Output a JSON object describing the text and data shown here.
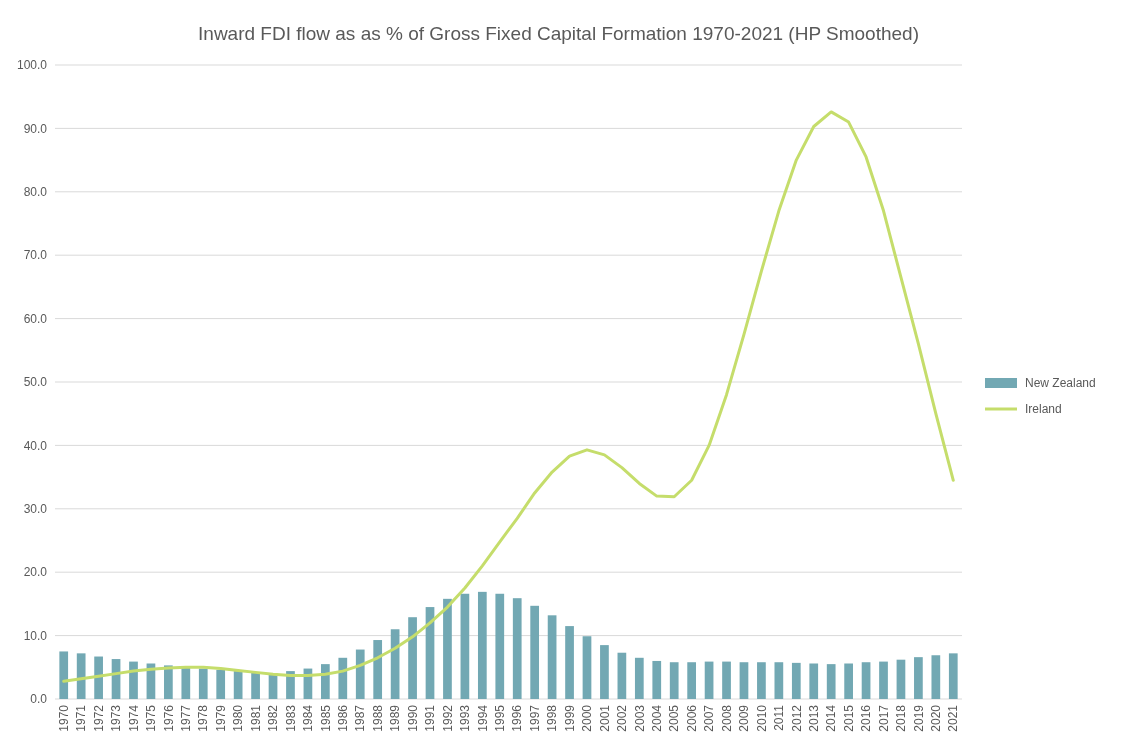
{
  "chart_data": {
    "type": "bar",
    "title": "Inward FDI flow as as % of Gross Fixed Capital Formation 1970-2021 (HP Smoothed)",
    "categories": [
      "1970",
      "1971",
      "1972",
      "1973",
      "1974",
      "1975",
      "1976",
      "1977",
      "1978",
      "1979",
      "1980",
      "1981",
      "1982",
      "1983",
      "1984",
      "1985",
      "1986",
      "1987",
      "1988",
      "1989",
      "1990",
      "1991",
      "1992",
      "1993",
      "1994",
      "1995",
      "1996",
      "1997",
      "1998",
      "1999",
      "2000",
      "2001",
      "2002",
      "2003",
      "2004",
      "2005",
      "2006",
      "2007",
      "2008",
      "2009",
      "2010",
      "2011",
      "2012",
      "2013",
      "2014",
      "2015",
      "2016",
      "2017",
      "2018",
      "2019",
      "2020",
      "2021"
    ],
    "series": [
      {
        "name": "New Zealand",
        "type": "bar",
        "color": "#72a8b3",
        "values": [
          7.5,
          7.2,
          6.7,
          6.3,
          5.9,
          5.6,
          5.3,
          5.0,
          4.8,
          4.6,
          4.4,
          4.2,
          4.1,
          4.4,
          4.8,
          5.5,
          6.5,
          7.8,
          9.3,
          11.0,
          12.9,
          14.5,
          15.8,
          16.6,
          16.9,
          16.6,
          15.9,
          14.7,
          13.2,
          11.5,
          9.9,
          8.5,
          7.3,
          6.5,
          6.0,
          5.8,
          5.8,
          5.9,
          5.9,
          5.8,
          5.8,
          5.8,
          5.7,
          5.6,
          5.5,
          5.6,
          5.8,
          5.9,
          6.2,
          6.6,
          6.9,
          7.2
        ]
      },
      {
        "name": "Ireland",
        "type": "line",
        "color": "#c5dd6b",
        "values": [
          2.8,
          3.2,
          3.6,
          4.0,
          4.4,
          4.7,
          4.9,
          5.0,
          5.0,
          4.8,
          4.5,
          4.2,
          3.9,
          3.7,
          3.7,
          3.9,
          4.4,
          5.3,
          6.5,
          8.0,
          9.8,
          12.0,
          14.5,
          17.5,
          21.0,
          24.8,
          28.5,
          32.5,
          35.8,
          38.3,
          39.3,
          38.5,
          36.5,
          34.0,
          32.0,
          31.9,
          34.5,
          40.0,
          48.0,
          57.5,
          67.5,
          77.0,
          85.0,
          90.3,
          92.6,
          91.0,
          85.5,
          77.0,
          66.5,
          56.0,
          45.0,
          34.5
        ]
      }
    ],
    "ylim": [
      0,
      100
    ],
    "yticks": [
      {
        "value": 0,
        "label": "0.0"
      },
      {
        "value": 10,
        "label": "10.0"
      },
      {
        "value": 20,
        "label": "20.0"
      },
      {
        "value": 30,
        "label": "30.0"
      },
      {
        "value": 40,
        "label": "40.0"
      },
      {
        "value": 50,
        "label": "50.0"
      },
      {
        "value": 60,
        "label": "60.0"
      },
      {
        "value": 70,
        "label": "70.0"
      },
      {
        "value": 80,
        "label": "80.0"
      },
      {
        "value": 90,
        "label": "90.0"
      },
      {
        "value": 100,
        "label": "100.0"
      }
    ],
    "grid": "y",
    "legend": "right",
    "marker": "none",
    "line_style": "solid"
  }
}
